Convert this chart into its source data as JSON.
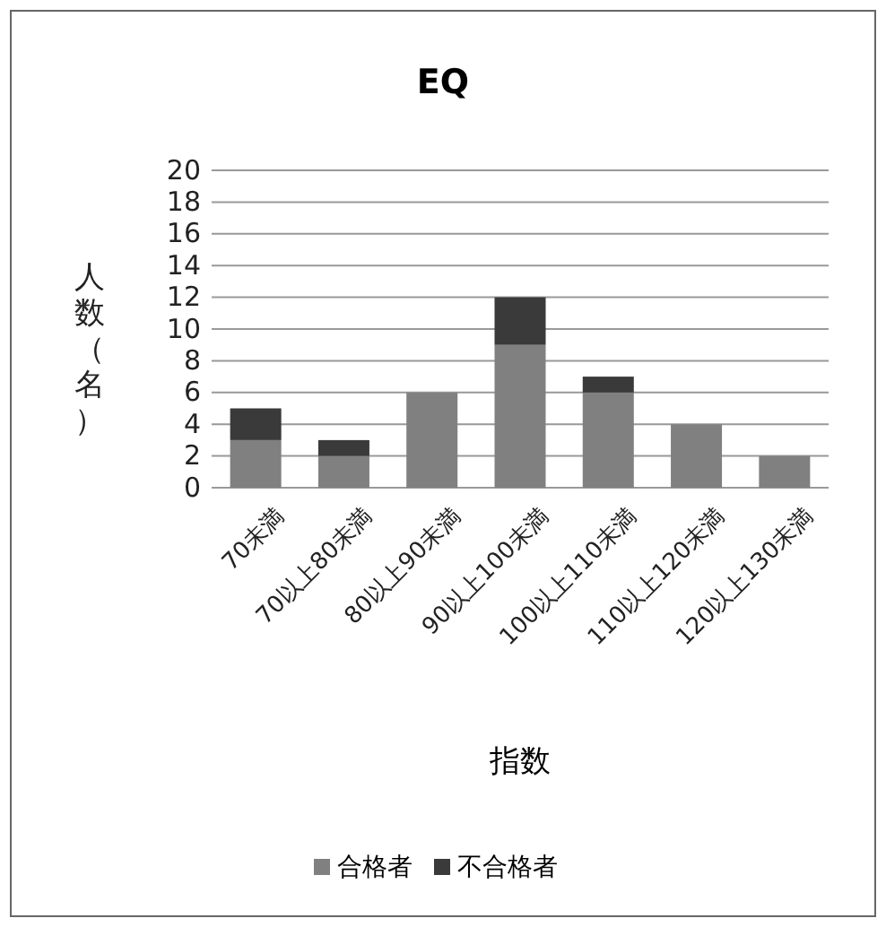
{
  "chart_data": {
    "type": "bar",
    "title": "EQ",
    "xlabel": "指数",
    "ylabel": "人数（名）",
    "categories": [
      "70未満",
      "70以上80未満",
      "80以上90未満",
      "90以上100未満",
      "100以上110未満",
      "110以上120未満",
      "120以上130未満"
    ],
    "series": [
      {
        "name": "合格者",
        "color": "#808080",
        "values": [
          3,
          2,
          6,
          9,
          6,
          4,
          2
        ]
      },
      {
        "name": "不合格者",
        "color": "#3a3a3a",
        "values": [
          2,
          1,
          0,
          3,
          1,
          0,
          0
        ]
      }
    ],
    "stacked": true,
    "ylim": [
      0,
      20
    ],
    "yticks": [
      0,
      2,
      4,
      6,
      8,
      10,
      12,
      14,
      16,
      18,
      20
    ],
    "grid": "y",
    "legend": "bottom"
  }
}
